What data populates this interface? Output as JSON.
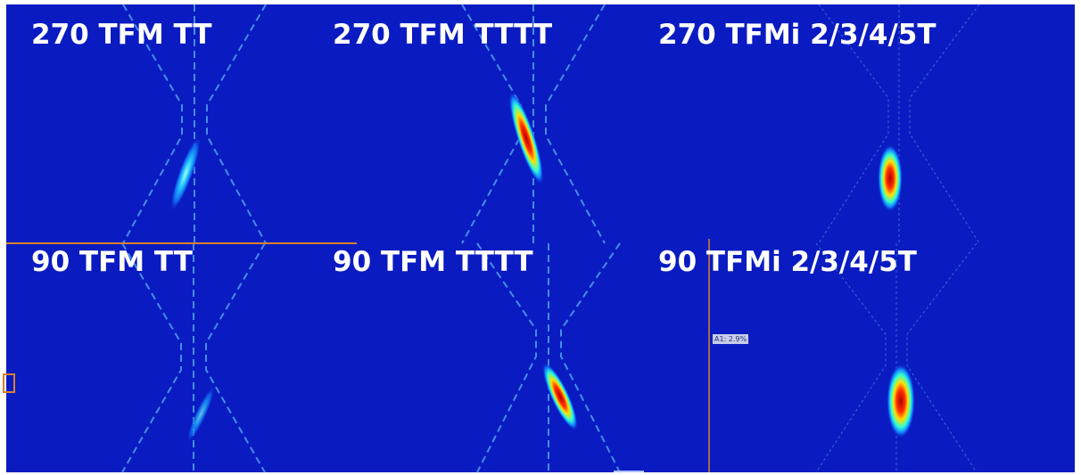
{
  "panels": [
    {
      "label": "270 TFM TT"
    },
    {
      "label": "270 TFM TTTT"
    },
    {
      "label": "270 TFMi 2/3/4/5T"
    },
    {
      "label": "90 TFM TT"
    },
    {
      "label": "90 TFM TTTT"
    },
    {
      "label": "90 TFMi 2/3/4/5T"
    }
  ],
  "cursor_label": "A1: 2.9%"
}
